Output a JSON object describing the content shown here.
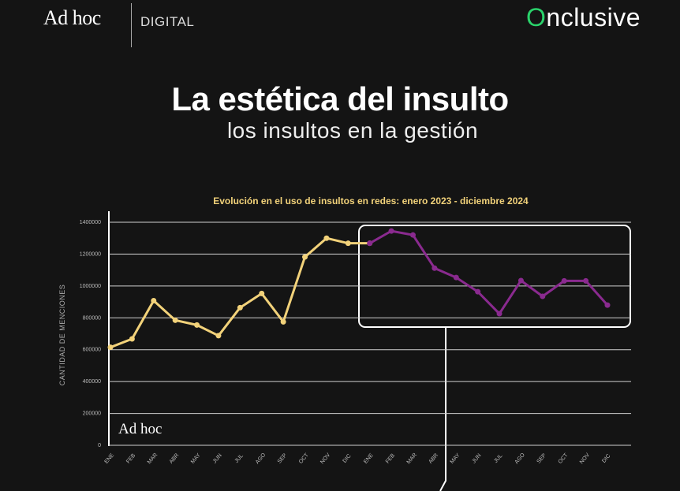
{
  "header": {
    "brand": "Ad hoc",
    "section": "DIGITAL",
    "partner": "Onclusive",
    "title": "La estética del insulto",
    "subtitle": "los insultos en la gestión"
  },
  "chart_data": {
    "type": "line",
    "title": "Evolución en el uso de insultos en redes: enero 2023 - diciembre 2024",
    "y_label": "CANTIDAD DE MENCIONES",
    "watermark": "Ad hoc",
    "categories": [
      "ENE",
      "FEB",
      "MAR",
      "ABR",
      "MAY",
      "JUN",
      "JUL",
      "AGO",
      "SEP",
      "OCT",
      "NOV",
      "DIC",
      "ENE",
      "FEB",
      "MAR",
      "ABR",
      "MAY",
      "JUN",
      "JUL",
      "AGO",
      "SEP",
      "OCT",
      "NOV",
      "DIC"
    ],
    "series": [
      {
        "color": "#f2d27a",
        "values": [
          615000,
          668000,
          908000,
          785000,
          755000,
          688000,
          864000,
          953000,
          775000,
          1182000,
          1300000,
          1268000,
          1268000,
          null,
          null,
          null,
          null,
          null,
          null,
          null,
          null,
          null,
          null,
          null
        ]
      },
      {
        "color": "#8a2a8f",
        "values": [
          null,
          null,
          null,
          null,
          null,
          null,
          null,
          null,
          null,
          null,
          null,
          null,
          1268000,
          1345000,
          1320000,
          1112000,
          1053000,
          964000,
          826000,
          1034000,
          935000,
          1032000,
          1032000,
          880000
        ]
      }
    ],
    "ylim": [
      0,
      1400000
    ],
    "yticks": [
      0,
      200000,
      400000,
      600000,
      800000,
      1000000,
      1200000,
      1400000
    ],
    "grid": true
  }
}
